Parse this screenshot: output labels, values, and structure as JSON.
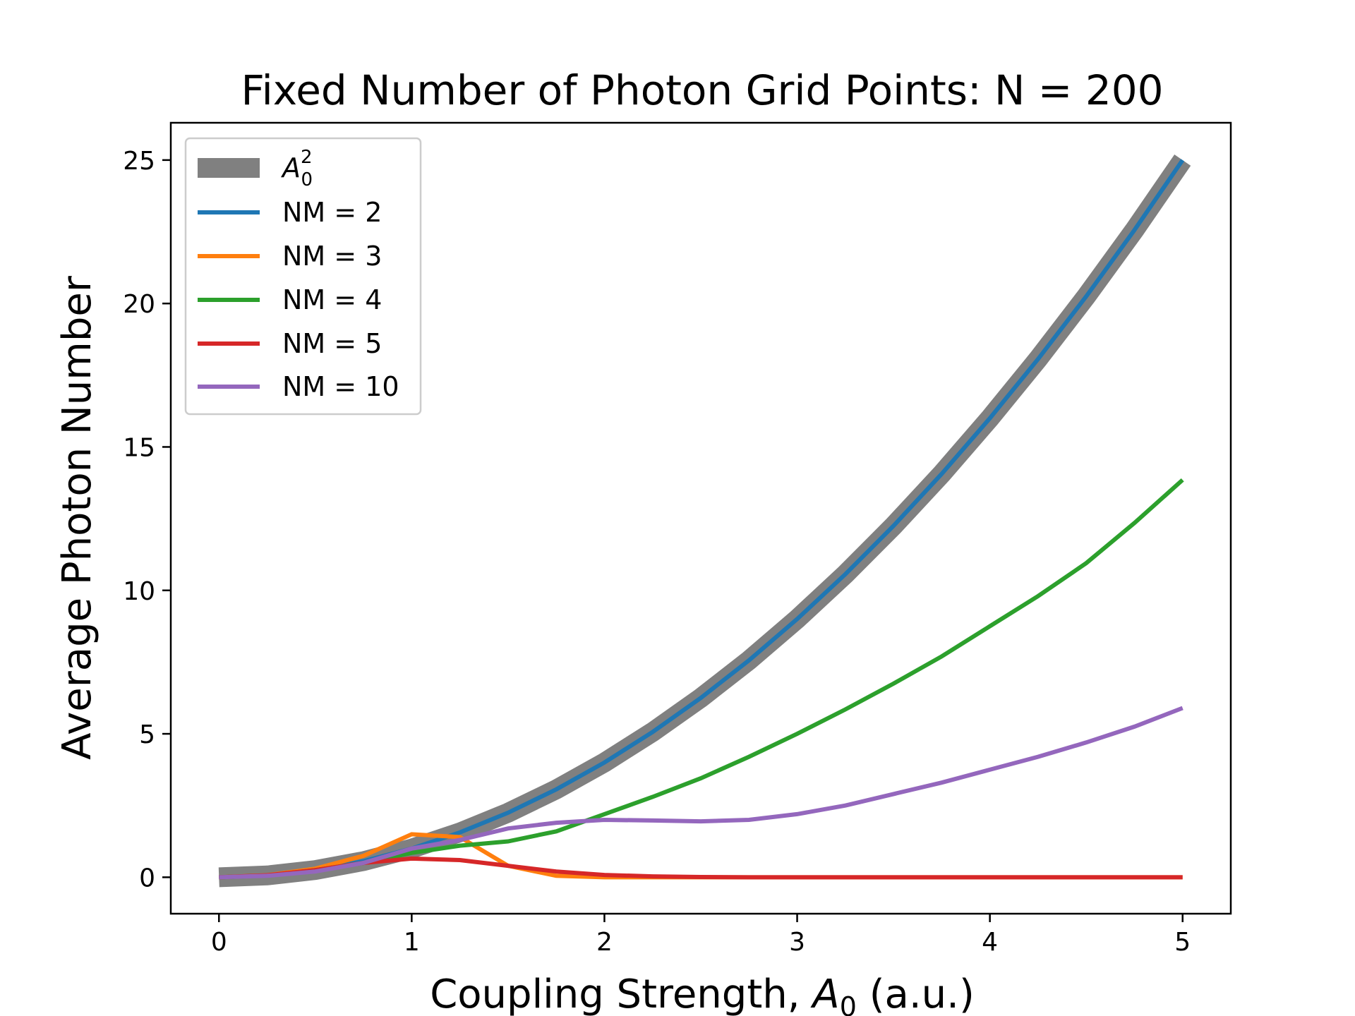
{
  "chart_data": {
    "type": "line",
    "title": "Fixed Number of Photon Grid Points: N = 200",
    "xlabel_main": "Coupling Strength, ",
    "xlabel_symbol": "A",
    "xlabel_sub": "0",
    "xlabel_unit": " (a.u.)",
    "ylabel": "Average Photon Number",
    "xlim": [
      -0.25,
      5.25
    ],
    "ylim": [
      -1.27,
      26.3
    ],
    "xticks": [
      0,
      1,
      2,
      3,
      4,
      5
    ],
    "yticks": [
      0,
      5,
      10,
      15,
      20,
      25
    ],
    "grid": false,
    "legend_position": "top-left",
    "x": [
      0,
      0.25,
      0.5,
      0.75,
      1.0,
      1.25,
      1.5,
      1.75,
      2.0,
      2.25,
      2.5,
      2.75,
      3.0,
      3.25,
      3.5,
      3.75,
      4.0,
      4.25,
      4.5,
      4.75,
      5.0
    ],
    "series": [
      {
        "legend_symbol": "A",
        "legend_sub": "0",
        "legend_sup": "2",
        "color": "#808080",
        "style": "thick",
        "values": [
          0,
          0.0625,
          0.25,
          0.5625,
          1.0,
          1.5625,
          2.25,
          3.0625,
          4.0,
          5.0625,
          6.25,
          7.5625,
          9.0,
          10.5625,
          12.25,
          14.0625,
          16.0,
          18.0625,
          20.25,
          22.5625,
          25.0
        ]
      },
      {
        "name": "NM = 2",
        "color": "#1f77b4",
        "values": [
          0,
          0.0625,
          0.25,
          0.5625,
          1.0,
          1.5625,
          2.25,
          3.0625,
          4.0,
          5.0625,
          6.25,
          7.5625,
          9.0,
          10.5625,
          12.25,
          14.0625,
          16.0,
          18.0625,
          20.25,
          22.5625,
          25.0
        ]
      },
      {
        "name": "NM = 3",
        "color": "#ff7f0e",
        "values": [
          0,
          0.07,
          0.3,
          0.75,
          1.5,
          1.4,
          0.4,
          0.05,
          0.0,
          0.0,
          0.0,
          0.0,
          0.0,
          0.0,
          0.0,
          0.0,
          0.0,
          0.0,
          0.0,
          0.0,
          0.0
        ]
      },
      {
        "name": "NM = 4",
        "color": "#2ca02c",
        "values": [
          0,
          0.06,
          0.25,
          0.5,
          0.85,
          1.1,
          1.25,
          1.6,
          2.2,
          2.8,
          3.45,
          4.2,
          5.0,
          5.85,
          6.75,
          7.7,
          8.75,
          9.8,
          10.95,
          12.35,
          13.85
        ]
      },
      {
        "name": "NM = 5",
        "color": "#d62728",
        "values": [
          0,
          0.07,
          0.25,
          0.5,
          0.65,
          0.6,
          0.4,
          0.2,
          0.08,
          0.03,
          0.01,
          0.0,
          0.0,
          0.0,
          0.0,
          0.0,
          0.0,
          0.0,
          0.0,
          0.0,
          0.0
        ]
      },
      {
        "name": "NM = 10",
        "color": "#9467bd",
        "values": [
          0,
          0.05,
          0.2,
          0.5,
          1.0,
          1.3,
          1.7,
          1.9,
          2.0,
          1.98,
          1.95,
          2.0,
          2.2,
          2.5,
          2.9,
          3.3,
          3.75,
          4.2,
          4.7,
          5.25,
          5.9
        ]
      }
    ]
  }
}
